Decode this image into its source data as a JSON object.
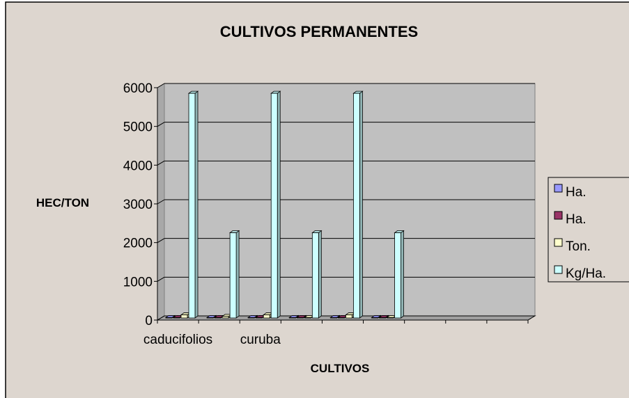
{
  "chart_data": {
    "type": "bar3d",
    "title": "CULTIVOS PERMANENTES",
    "x_label": "CULTIVOS",
    "y_label": "HEC/TON",
    "categories": [
      "caducifolios",
      null,
      "curuba",
      null,
      null,
      null,
      null,
      null,
      null
    ],
    "series": [
      {
        "name": "Ha.",
        "color": "#9999ff",
        "values": [
          10,
          10,
          10,
          10,
          10,
          10,
          null,
          null,
          null
        ]
      },
      {
        "name": "Ha.",
        "color": "#993366",
        "values": [
          10,
          10,
          10,
          10,
          10,
          10,
          null,
          null,
          null
        ]
      },
      {
        "name": "Ton.",
        "color": "#ffffcc",
        "values": [
          80,
          40,
          80,
          10,
          80,
          10,
          null,
          null,
          null
        ]
      },
      {
        "name": "Kg/Ha.",
        "color": "#ccffff",
        "values": [
          5800,
          2200,
          5800,
          2200,
          5800,
          2200,
          null,
          null,
          null
        ]
      }
    ],
    "ylim": [
      0,
      6000
    ],
    "yticks": [
      0,
      1000,
      2000,
      3000,
      4000,
      5000,
      6000
    ],
    "grid": true,
    "legend": "right"
  }
}
